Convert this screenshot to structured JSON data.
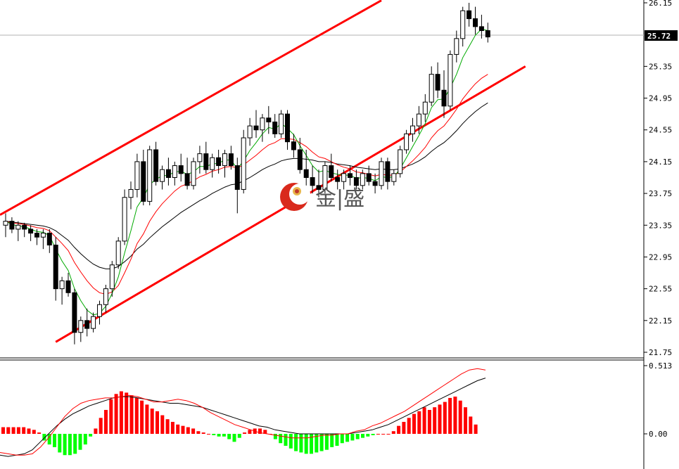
{
  "chart_data": [
    {
      "type": "candlestick",
      "current_price": 25.72,
      "current_price_label": "25.72",
      "y_ticks": [
        "26.15",
        "25.35",
        "24.95",
        "24.55",
        "24.15",
        "23.75",
        "23.35",
        "22.95",
        "22.55",
        "22.15",
        "21.75"
      ],
      "ylim": [
        21.75,
        26.15
      ],
      "grid": false,
      "colors": {
        "channel": "#ff0000",
        "ma_fast": "#00aa00",
        "ma_mid": "#ff0000",
        "ma_slow": "#000000",
        "candle": "#000000"
      },
      "channel": {
        "upper": [
          [
            0,
            23.48
          ],
          [
            60,
            26.18
          ]
        ],
        "lower": [
          [
            8,
            21.88
          ],
          [
            83,
            25.35
          ]
        ]
      },
      "ohlc": [
        [
          23.35,
          23.5,
          23.2,
          23.4
        ],
        [
          23.4,
          23.45,
          23.25,
          23.3
        ],
        [
          23.3,
          23.4,
          23.15,
          23.35
        ],
        [
          23.35,
          23.38,
          23.2,
          23.3
        ],
        [
          23.3,
          23.35,
          23.15,
          23.25
        ],
        [
          23.25,
          23.3,
          23.1,
          23.2
        ],
        [
          23.2,
          23.3,
          23.05,
          23.25
        ],
        [
          23.25,
          23.3,
          23.0,
          23.1
        ],
        [
          23.1,
          23.2,
          22.4,
          22.55
        ],
        [
          22.55,
          22.7,
          22.35,
          22.65
        ],
        [
          22.65,
          22.75,
          22.45,
          22.5
        ],
        [
          22.5,
          22.55,
          21.85,
          22.0
        ],
        [
          22.0,
          22.2,
          21.88,
          22.15
        ],
        [
          22.15,
          22.3,
          21.95,
          22.05
        ],
        [
          22.05,
          22.25,
          22.0,
          22.2
        ],
        [
          22.2,
          22.4,
          22.1,
          22.35
        ],
        [
          22.35,
          22.6,
          22.25,
          22.55
        ],
        [
          22.55,
          22.9,
          22.45,
          22.85
        ],
        [
          22.85,
          23.2,
          22.8,
          23.15
        ],
        [
          23.15,
          23.8,
          23.1,
          23.7
        ],
        [
          23.7,
          23.9,
          23.55,
          23.8
        ],
        [
          23.8,
          24.25,
          23.7,
          24.15
        ],
        [
          24.15,
          24.3,
          23.6,
          23.65
        ],
        [
          23.65,
          24.35,
          23.6,
          24.3
        ],
        [
          24.3,
          24.4,
          23.85,
          23.9
        ],
        [
          23.9,
          24.1,
          23.8,
          24.05
        ],
        [
          24.05,
          24.2,
          23.85,
          23.95
        ],
        [
          23.95,
          24.15,
          23.85,
          24.1
        ],
        [
          24.1,
          24.25,
          23.9,
          24.0
        ],
        [
          24.0,
          24.2,
          23.8,
          23.85
        ],
        [
          23.85,
          24.2,
          23.8,
          24.15
        ],
        [
          24.15,
          24.35,
          24.0,
          24.25
        ],
        [
          24.25,
          24.4,
          24.0,
          24.05
        ],
        [
          24.05,
          24.25,
          23.95,
          24.2
        ],
        [
          24.2,
          24.3,
          24.0,
          24.1
        ],
        [
          24.1,
          24.3,
          23.95,
          24.25
        ],
        [
          24.25,
          24.35,
          24.05,
          24.1
        ],
        [
          24.1,
          24.2,
          23.5,
          23.8
        ],
        [
          23.8,
          24.55,
          23.75,
          24.45
        ],
        [
          24.45,
          24.7,
          24.35,
          24.6
        ],
        [
          24.6,
          24.8,
          24.45,
          24.55
        ],
        [
          24.55,
          24.75,
          24.4,
          24.7
        ],
        [
          24.7,
          24.85,
          24.5,
          24.65
        ],
        [
          24.65,
          24.75,
          24.45,
          24.5
        ],
        [
          24.5,
          24.8,
          24.45,
          24.75
        ],
        [
          24.75,
          24.8,
          24.3,
          24.4
        ],
        [
          24.4,
          24.5,
          24.2,
          24.3
        ],
        [
          24.3,
          24.45,
          24.0,
          24.05
        ],
        [
          24.05,
          24.3,
          23.85,
          23.95
        ],
        [
          23.95,
          24.1,
          23.75,
          23.85
        ],
        [
          23.85,
          24.05,
          23.7,
          23.8
        ],
        [
          23.8,
          24.15,
          23.75,
          24.1
        ],
        [
          24.1,
          24.25,
          23.9,
          23.95
        ],
        [
          23.95,
          24.05,
          23.8,
          23.9
        ],
        [
          23.9,
          24.05,
          23.8,
          24.0
        ],
        [
          24.0,
          24.1,
          23.85,
          23.95
        ],
        [
          23.95,
          24.05,
          23.8,
          23.85
        ],
        [
          23.85,
          24.05,
          23.8,
          24.0
        ],
        [
          24.0,
          24.1,
          23.85,
          23.9
        ],
        [
          23.9,
          24.0,
          23.75,
          23.85
        ],
        [
          23.85,
          24.2,
          23.8,
          24.15
        ],
        [
          24.15,
          24.2,
          23.8,
          23.9
        ],
        [
          23.9,
          24.05,
          23.85,
          24.0
        ],
        [
          24.0,
          24.35,
          23.95,
          24.3
        ],
        [
          24.3,
          24.55,
          24.25,
          24.5
        ],
        [
          24.5,
          24.7,
          24.4,
          24.6
        ],
        [
          24.6,
          24.85,
          24.5,
          24.75
        ],
        [
          24.75,
          25.0,
          24.65,
          24.9
        ],
        [
          24.9,
          25.35,
          24.85,
          25.25
        ],
        [
          25.25,
          25.4,
          24.95,
          25.05
        ],
        [
          25.05,
          25.3,
          24.7,
          24.85
        ],
        [
          24.85,
          25.55,
          24.8,
          25.5
        ],
        [
          25.5,
          25.8,
          25.4,
          25.7
        ],
        [
          25.7,
          26.1,
          25.6,
          26.05
        ],
        [
          26.05,
          26.15,
          25.85,
          25.95
        ],
        [
          25.95,
          26.1,
          25.75,
          25.85
        ],
        [
          25.85,
          26.0,
          25.7,
          25.8
        ],
        [
          25.8,
          25.9,
          25.65,
          25.72
        ]
      ],
      "ma_fast": [
        23.4,
        23.36,
        23.34,
        23.33,
        23.3,
        23.27,
        23.26,
        23.22,
        23.05,
        22.9,
        22.78,
        22.55,
        22.4,
        22.28,
        22.22,
        22.24,
        22.33,
        22.49,
        22.7,
        23.0,
        23.28,
        23.58,
        23.7,
        23.86,
        23.93,
        23.97,
        23.98,
        24.02,
        24.03,
        23.99,
        24.02,
        24.09,
        24.09,
        24.12,
        24.13,
        24.17,
        24.17,
        24.06,
        24.16,
        24.29,
        24.39,
        24.5,
        24.58,
        24.56,
        24.63,
        24.57,
        24.49,
        24.35,
        24.23,
        24.1,
        24.02,
        24.04,
        24.01,
        23.99,
        23.98,
        23.98,
        23.94,
        23.95,
        23.94,
        23.91,
        23.96,
        23.95,
        23.96,
        24.06,
        24.2,
        24.34,
        24.48,
        24.63,
        24.83,
        24.93,
        24.94,
        25.08,
        25.25,
        25.46,
        25.6,
        25.74,
        25.82,
        25.8
      ],
      "ma_mid": [
        23.4,
        23.38,
        23.37,
        23.36,
        23.34,
        23.32,
        23.31,
        23.28,
        23.2,
        23.12,
        23.03,
        22.88,
        22.76,
        22.65,
        22.56,
        22.5,
        22.48,
        22.51,
        22.59,
        22.75,
        22.92,
        23.12,
        23.24,
        23.4,
        23.52,
        23.62,
        23.7,
        23.78,
        23.84,
        23.87,
        23.91,
        23.96,
        23.99,
        24.03,
        24.05,
        24.08,
        24.09,
        24.07,
        24.11,
        24.17,
        24.23,
        24.3,
        24.36,
        24.39,
        24.44,
        24.44,
        24.43,
        24.39,
        24.34,
        24.27,
        24.21,
        24.19,
        24.15,
        24.11,
        24.08,
        24.06,
        24.02,
        24.01,
        23.99,
        23.97,
        23.99,
        23.98,
        23.98,
        24.02,
        24.09,
        24.16,
        24.24,
        24.33,
        24.45,
        24.54,
        24.6,
        24.7,
        24.81,
        24.94,
        25.04,
        25.13,
        25.2,
        25.25
      ],
      "ma_slow": [
        23.4,
        23.39,
        23.38,
        23.37,
        23.36,
        23.35,
        23.34,
        23.32,
        23.28,
        23.22,
        23.16,
        23.07,
        22.99,
        22.92,
        22.86,
        22.82,
        22.8,
        22.8,
        22.83,
        22.89,
        22.96,
        23.05,
        23.11,
        23.19,
        23.26,
        23.33,
        23.39,
        23.45,
        23.51,
        23.56,
        23.61,
        23.66,
        23.7,
        23.75,
        23.79,
        23.83,
        23.86,
        23.87,
        23.91,
        23.95,
        24.0,
        24.05,
        24.09,
        24.12,
        24.16,
        24.18,
        24.19,
        24.19,
        24.18,
        24.17,
        24.15,
        24.15,
        24.14,
        24.12,
        24.11,
        24.1,
        24.08,
        24.07,
        24.06,
        24.05,
        24.06,
        24.05,
        24.05,
        24.06,
        24.09,
        24.12,
        24.16,
        24.21,
        24.28,
        24.34,
        24.39,
        24.46,
        24.54,
        24.63,
        24.71,
        24.78,
        24.84,
        24.89
      ]
    },
    {
      "type": "bar",
      "indicator": "histogram with signal lines",
      "y_ticks": [
        "0.513",
        "0.00"
      ],
      "ylim": [
        -0.17,
        0.513
      ],
      "colors": {
        "positive": "#ff0000",
        "negative": "#00ff00",
        "line_main": "#000000",
        "line_signal": "#ff0000"
      },
      "values": [
        0.05,
        0.05,
        0.05,
        0.05,
        0.05,
        0.04,
        0.03,
        0.01,
        -0.05,
        -0.08,
        -0.1,
        -0.14,
        -0.16,
        -0.16,
        -0.15,
        -0.12,
        -0.08,
        -0.02,
        0.04,
        0.12,
        0.18,
        0.26,
        0.3,
        0.32,
        0.31,
        0.29,
        0.27,
        0.25,
        0.22,
        0.19,
        0.17,
        0.14,
        0.11,
        0.09,
        0.07,
        0.06,
        0.05,
        0.04,
        0.02,
        0.01,
        0.0,
        -0.01,
        -0.02,
        -0.02,
        -0.04,
        -0.06,
        -0.03,
        0.01,
        0.03,
        0.04,
        0.04,
        0.03,
        0.0,
        -0.04,
        -0.07,
        -0.09,
        -0.11,
        -0.13,
        -0.14,
        -0.15,
        -0.15,
        -0.14,
        -0.13,
        -0.12,
        -0.1,
        -0.09,
        -0.07,
        -0.06,
        -0.05,
        -0.04,
        -0.03,
        -0.02,
        -0.01,
        0.0,
        0.0,
        0.0,
        0.02,
        0.06,
        0.09,
        0.12,
        0.15,
        0.17,
        0.2,
        0.18,
        0.2,
        0.22,
        0.24,
        0.27,
        0.28,
        0.25,
        0.2,
        0.13,
        0.07
      ],
      "line_main": [
        -0.16,
        -0.17,
        -0.16,
        -0.15,
        -0.12,
        -0.06,
        0.0,
        0.06,
        0.11,
        0.15,
        0.18,
        0.21,
        0.23,
        0.25,
        0.27,
        0.28,
        0.28,
        0.27,
        0.26,
        0.25,
        0.24,
        0.23,
        0.23,
        0.22,
        0.21,
        0.2,
        0.18,
        0.16,
        0.14,
        0.12,
        0.1,
        0.08,
        0.06,
        0.05,
        0.03,
        0.02,
        0.01,
        0.0,
        0.0,
        0.0,
        0.0,
        0.0,
        0.0,
        0.0,
        0.01,
        0.02,
        0.03,
        0.05,
        0.07,
        0.1,
        0.13,
        0.16,
        0.19,
        0.22,
        0.25,
        0.28,
        0.31,
        0.34,
        0.37,
        0.4,
        0.42
      ],
      "line_signal": [
        -0.14,
        -0.15,
        -0.16,
        -0.16,
        -0.15,
        -0.1,
        -0.03,
        0.05,
        0.13,
        0.19,
        0.23,
        0.25,
        0.26,
        0.27,
        0.27,
        0.28,
        0.29,
        0.28,
        0.26,
        0.24,
        0.24,
        0.25,
        0.26,
        0.25,
        0.23,
        0.2,
        0.16,
        0.13,
        0.1,
        0.07,
        0.05,
        0.03,
        0.01,
        0.0,
        -0.01,
        -0.02,
        -0.03,
        -0.03,
        -0.03,
        -0.02,
        -0.01,
        -0.01,
        0.0,
        0.0,
        0.02,
        0.03,
        0.06,
        0.08,
        0.11,
        0.14,
        0.17,
        0.21,
        0.25,
        0.29,
        0.33,
        0.37,
        0.41,
        0.45,
        0.48,
        0.49,
        0.48
      ]
    }
  ],
  "watermark": {
    "text": "金|盛",
    "icon": "jinsheng-logo-icon"
  }
}
